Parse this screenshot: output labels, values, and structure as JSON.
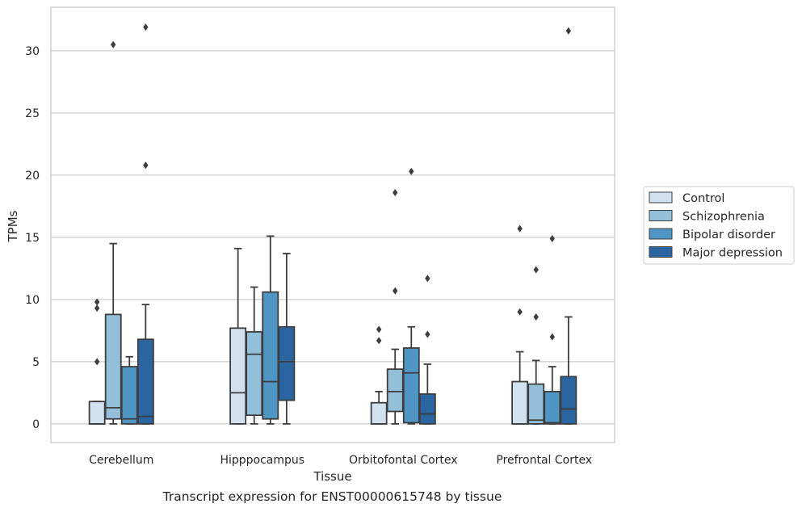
{
  "caption": "Transcript expression for ENST00000615748 by tissue",
  "chart_data": {
    "type": "box",
    "xlabel": "Tissue",
    "ylabel": "TPMs",
    "ylim": [
      -1.5,
      33.5
    ],
    "yticks": [
      0,
      5,
      10,
      15,
      20,
      25,
      30
    ],
    "grid": "horizontal",
    "legend_position": "right",
    "categories": [
      "Cerebellum",
      "Hipppocampus",
      "Orbitofontal Cortex",
      "Prefrontal Cortex"
    ],
    "series": [
      {
        "name": "Control",
        "color": "#d1e1f0",
        "boxes": [
          {
            "whislo": 0,
            "q1": 0,
            "med": 0,
            "q3": 1.8,
            "whishi": 1.8,
            "fliers": [
              5.0,
              9.3,
              9.8
            ]
          },
          {
            "whislo": 0,
            "q1": 0,
            "med": 2.5,
            "q3": 7.7,
            "whishi": 14.1,
            "fliers": []
          },
          {
            "whislo": 0,
            "q1": 0,
            "med": 0,
            "q3": 1.7,
            "whishi": 2.6,
            "fliers": [
              6.7,
              7.6
            ]
          },
          {
            "whislo": 0,
            "q1": 0,
            "med": 0,
            "q3": 3.4,
            "whishi": 5.8,
            "fliers": [
              9.0,
              15.7
            ]
          }
        ]
      },
      {
        "name": "Schizophrenia",
        "color": "#93bfdb",
        "boxes": [
          {
            "whislo": 0,
            "q1": 0.4,
            "med": 1.3,
            "q3": 8.8,
            "whishi": 14.5,
            "fliers": [
              30.5
            ]
          },
          {
            "whislo": 0,
            "q1": 0.7,
            "med": 5.6,
            "q3": 7.4,
            "whishi": 11.0,
            "fliers": []
          },
          {
            "whislo": 0,
            "q1": 1.0,
            "med": 2.6,
            "q3": 4.4,
            "whishi": 6.0,
            "fliers": [
              10.7,
              18.6
            ]
          },
          {
            "whislo": 0,
            "q1": 0,
            "med": 0.3,
            "q3": 3.2,
            "whishi": 5.1,
            "fliers": [
              8.6,
              12.4
            ]
          }
        ]
      },
      {
        "name": "Bipolar disorder",
        "color": "#5096c4",
        "boxes": [
          {
            "whislo": 0,
            "q1": 0,
            "med": 0.4,
            "q3": 4.6,
            "whishi": 5.4,
            "fliers": []
          },
          {
            "whislo": 0,
            "q1": 0.4,
            "med": 3.4,
            "q3": 10.6,
            "whishi": 15.1,
            "fliers": []
          },
          {
            "whislo": 0,
            "q1": 0.1,
            "med": 4.1,
            "q3": 6.1,
            "whishi": 7.8,
            "fliers": [
              20.3
            ]
          },
          {
            "whislo": 0,
            "q1": 0,
            "med": 0.1,
            "q3": 2.6,
            "whishi": 4.6,
            "fliers": [
              7.0,
              14.9
            ]
          }
        ]
      },
      {
        "name": "Major depression",
        "color": "#2a64a1",
        "boxes": [
          {
            "whislo": 0,
            "q1": 0,
            "med": 0.6,
            "q3": 6.8,
            "whishi": 9.6,
            "fliers": [
              20.8,
              31.9
            ]
          },
          {
            "whislo": 0,
            "q1": 1.9,
            "med": 5.0,
            "q3": 7.8,
            "whishi": 13.7,
            "fliers": []
          },
          {
            "whislo": 0,
            "q1": 0,
            "med": 0.8,
            "q3": 2.4,
            "whishi": 4.8,
            "fliers": [
              7.2,
              11.7
            ]
          },
          {
            "whislo": 0,
            "q1": 0,
            "med": 1.2,
            "q3": 3.8,
            "whishi": 8.6,
            "fliers": [
              31.6
            ]
          }
        ]
      }
    ]
  }
}
